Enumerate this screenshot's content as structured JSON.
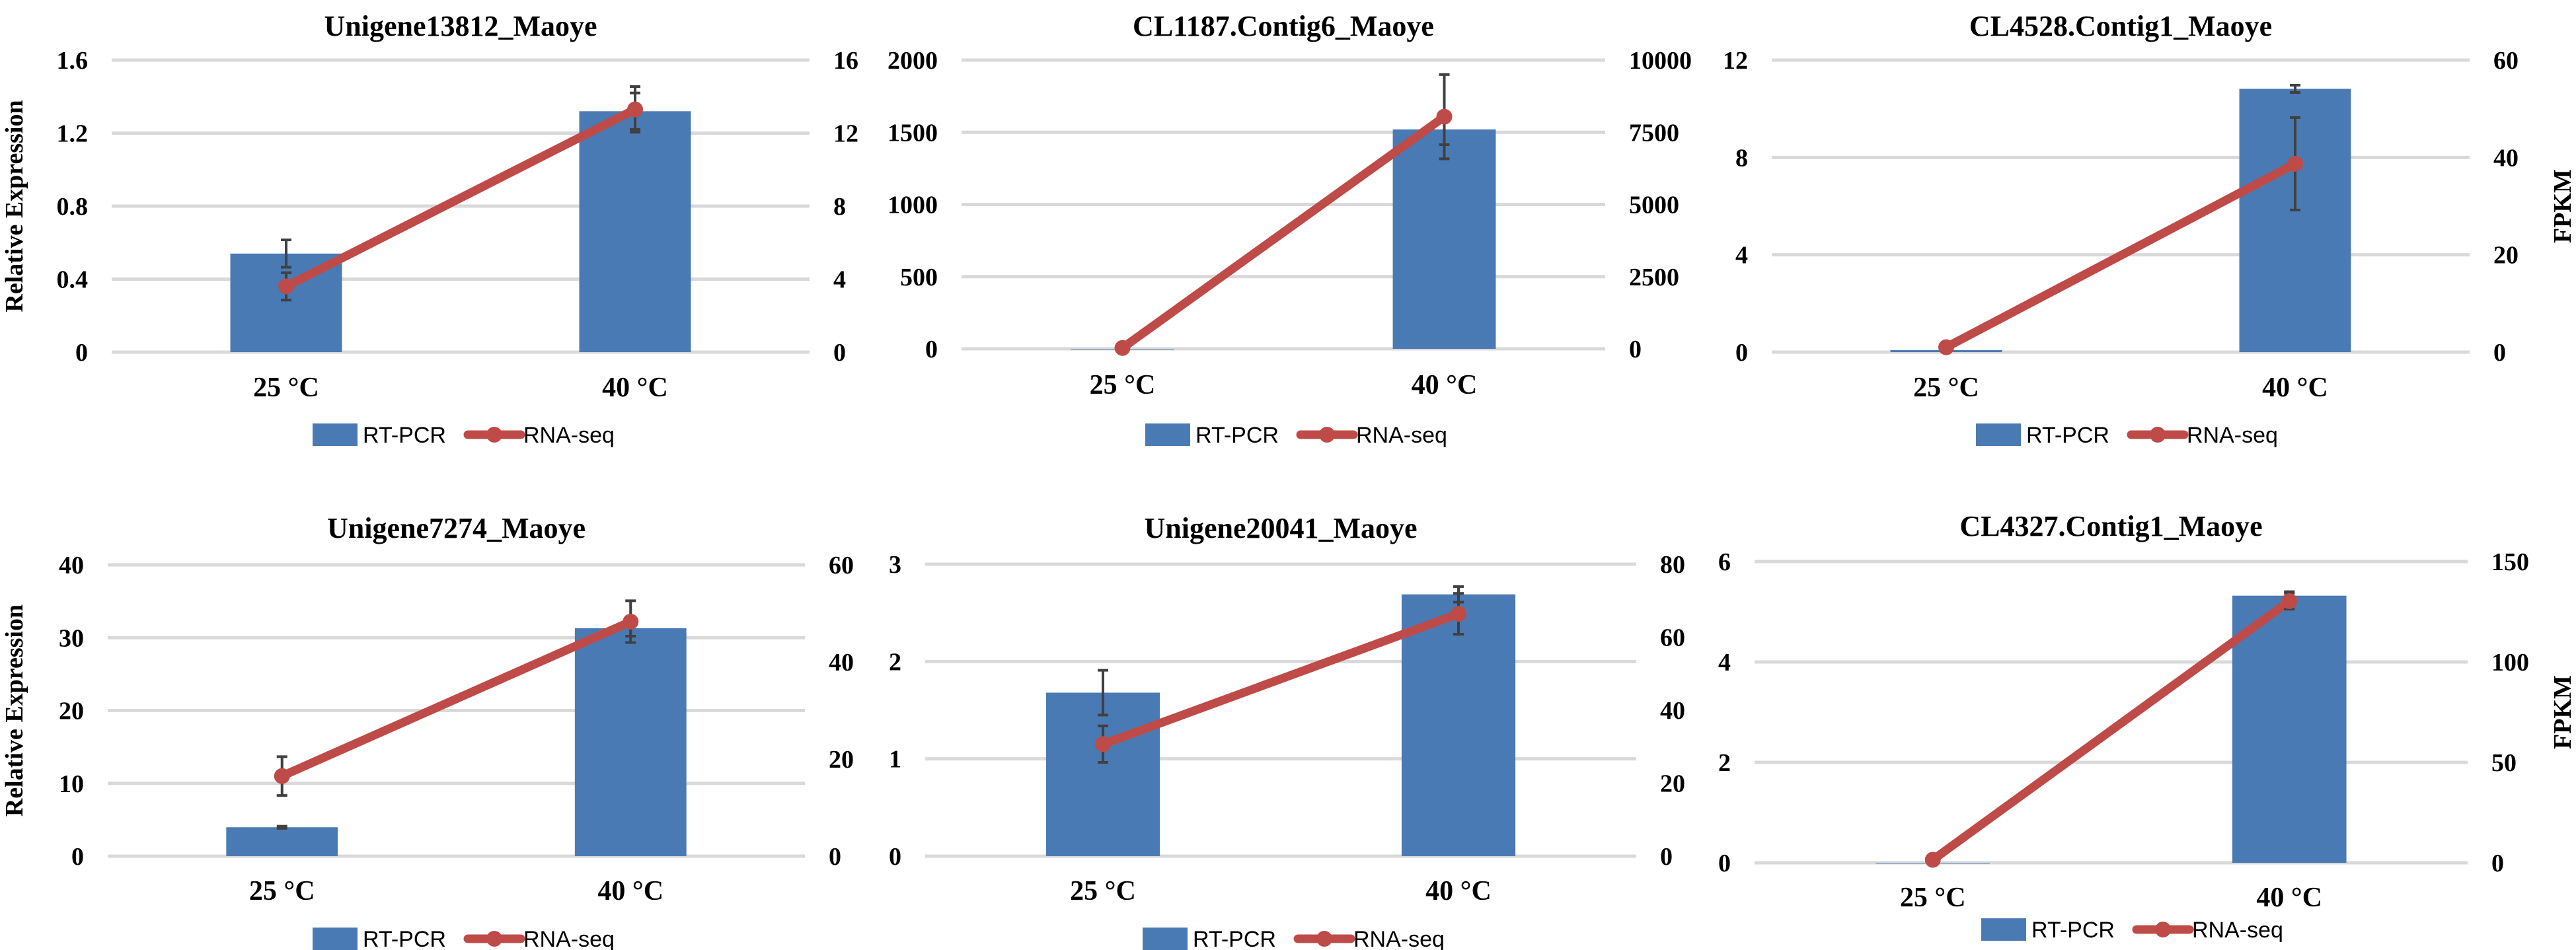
{
  "colors": {
    "bar": "#4a7ab3",
    "line": "#be4b48",
    "grid": "#d9d9d9",
    "error": "#404040"
  },
  "chart_data": [
    {
      "type": "bar+line",
      "title": "Unigene13812_Maoye",
      "categories": [
        "25 °C",
        "40 °C"
      ],
      "ylabel": "Relative Expression",
      "y2label": "",
      "ylim": [
        0,
        1.6
      ],
      "y2lim": [
        0,
        16
      ],
      "left_ticks": [
        "0",
        "0.4",
        "0.8",
        "1.2",
        "1.6"
      ],
      "right_ticks": [
        "0",
        "4",
        "8",
        "12",
        "16"
      ],
      "grid": true,
      "legend": "bottom",
      "series": [
        {
          "name": "RT-PCR",
          "kind": "bar",
          "axis": "left",
          "values": [
            0.54,
            1.32
          ],
          "errors": [
            0.075,
            0.1
          ]
        },
        {
          "name": "RNA-seq",
          "kind": "line",
          "axis": "right",
          "values": [
            3.6,
            13.3
          ],
          "errors": [
            0.75,
            1.25
          ]
        }
      ]
    },
    {
      "type": "bar+line",
      "title": "CL1187.Contig6_Maoye",
      "categories": [
        "25 °C",
        "40 °C"
      ],
      "ylabel": "",
      "y2label": "",
      "ylim": [
        0,
        2000
      ],
      "y2lim": [
        0,
        10000
      ],
      "left_ticks": [
        "0",
        "500",
        "1000",
        "1500",
        "2000"
      ],
      "right_ticks": [
        "0",
        "2500",
        "5000",
        "7500",
        "10000"
      ],
      "grid": true,
      "legend": "bottom",
      "series": [
        {
          "name": "RT-PCR",
          "kind": "bar",
          "axis": "left",
          "values": [
            0,
            1520
          ],
          "errors": [
            0,
            106
          ]
        },
        {
          "name": "RNA-seq",
          "kind": "line",
          "axis": "right",
          "values": [
            30,
            8040
          ],
          "errors": [
            0,
            1460
          ]
        }
      ]
    },
    {
      "type": "bar+line",
      "title": "CL4528.Contig1_Maoye",
      "categories": [
        "25 °C",
        "40 °C"
      ],
      "ylabel": "",
      "y2label": "FPKM",
      "ylim": [
        0,
        12
      ],
      "y2lim": [
        0,
        60
      ],
      "left_ticks": [
        "0",
        "4",
        "8",
        "12"
      ],
      "right_ticks": [
        "0",
        "20",
        "40",
        "60"
      ],
      "grid": true,
      "legend": "bottom",
      "series": [
        {
          "name": "RT-PCR",
          "kind": "bar",
          "axis": "left",
          "values": [
            0.08,
            10.82
          ],
          "errors": [
            0,
            0.15
          ]
        },
        {
          "name": "RNA-seq",
          "kind": "line",
          "axis": "right",
          "values": [
            1,
            38.7
          ],
          "errors": [
            0,
            9.5
          ]
        }
      ]
    },
    {
      "type": "bar+line",
      "title": "Unigene7274_Maoye",
      "categories": [
        "25 °C",
        "40 °C"
      ],
      "ylabel": "Relative Expression",
      "y2label": "",
      "ylim": [
        0,
        40
      ],
      "y2lim": [
        0,
        60
      ],
      "left_ticks": [
        "0",
        "10",
        "20",
        "30",
        "40"
      ],
      "right_ticks": [
        "0",
        "20",
        "40",
        "60"
      ],
      "grid": true,
      "legend": "bottom",
      "series": [
        {
          "name": "RT-PCR",
          "kind": "bar",
          "axis": "left",
          "values": [
            3.97,
            31.3
          ],
          "errors": [
            0.15,
            1.1
          ]
        },
        {
          "name": "RNA-seq",
          "kind": "line",
          "axis": "right",
          "values": [
            16.5,
            48.3
          ],
          "errors": [
            4.0,
            4.3
          ]
        }
      ]
    },
    {
      "type": "bar+line",
      "title": "Unigene20041_Maoye",
      "categories": [
        "25 °C",
        "40 °C"
      ],
      "ylabel": "",
      "y2label": "",
      "ylim": [
        0,
        3
      ],
      "y2lim": [
        0,
        80
      ],
      "left_ticks": [
        "0",
        "1",
        "2",
        "3"
      ],
      "right_ticks": [
        "0",
        "20",
        "40",
        "60",
        "80"
      ],
      "grid": true,
      "legend": "bottom",
      "series": [
        {
          "name": "RT-PCR",
          "kind": "bar",
          "axis": "left",
          "values": [
            1.68,
            2.69
          ],
          "errors": [
            0.23,
            0.08
          ]
        },
        {
          "name": "RNA-seq",
          "kind": "line",
          "axis": "right",
          "values": [
            30.7,
            66.4
          ],
          "errors": [
            5.0,
            5.6
          ]
        }
      ]
    },
    {
      "type": "bar+line",
      "title": "CL4327.Contig1_Maoye",
      "categories": [
        "25 °C",
        "40 °C"
      ],
      "ylabel": "",
      "y2label": "FPKM",
      "ylim": [
        0,
        6
      ],
      "y2lim": [
        0,
        150
      ],
      "left_ticks": [
        "0",
        "2",
        "4",
        "6"
      ],
      "right_ticks": [
        "0",
        "50",
        "100",
        "150"
      ],
      "grid": true,
      "legend": "bottom",
      "series": [
        {
          "name": "RT-PCR",
          "kind": "bar",
          "axis": "left",
          "values": [
            0,
            5.32
          ],
          "errors": [
            0,
            0.08
          ]
        },
        {
          "name": "RNA-seq",
          "kind": "line",
          "axis": "right",
          "values": [
            1.5,
            130.3
          ],
          "errors": [
            0,
            4
          ]
        }
      ]
    }
  ]
}
